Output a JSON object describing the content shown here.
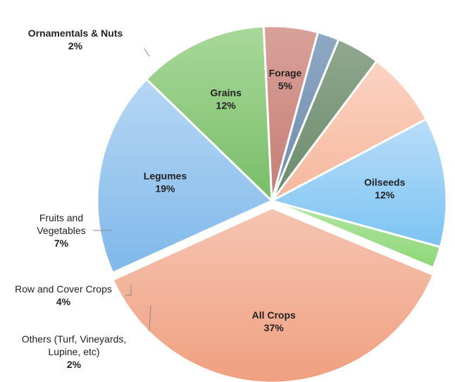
{
  "chart_data": {
    "type": "pie",
    "title": "",
    "unit": "%",
    "slices": [
      {
        "label": [
          "All Crops"
        ],
        "value": 37,
        "value_label": "37%",
        "color_light": "#f5c4b2",
        "color_dark": "#f0a080"
      },
      {
        "label": [
          "Legumes"
        ],
        "value": 19,
        "value_label": "19%",
        "color_light": "#b6d7f4",
        "color_dark": "#7fb8ea"
      },
      {
        "label": [
          "Grains"
        ],
        "value": 12,
        "value_label": "12%",
        "color_light": "#a9d89a",
        "color_dark": "#77bd67"
      },
      {
        "label": [
          "Forage"
        ],
        "value": 5,
        "value_label": "5%",
        "color_light": "#d9a19a",
        "color_dark": "#c47d74"
      },
      {
        "label": [
          "Others (Turf, Vineyards,",
          "Lupine, etc)"
        ],
        "value": 2,
        "value_label": "2%",
        "color_light": "#8fa8c4",
        "color_dark": "#6e8cae"
      },
      {
        "label": [
          "Row and Cover Crops"
        ],
        "value": 4,
        "value_label": "4%",
        "color_light": "#8fa88f",
        "color_dark": "#6b8a6b"
      },
      {
        "label": [
          "Fruits and",
          "Vegetables"
        ],
        "value": 7,
        "value_label": "7%",
        "color_light": "#fbd3c2",
        "color_dark": "#f6b79d"
      },
      {
        "label": [
          "Oilseeds"
        ],
        "value": 12,
        "value_label": "12%",
        "color_light": "#b9ddfa",
        "color_dark": "#7cc3f2"
      },
      {
        "label": [
          "Ornamentals & Nuts"
        ],
        "value": 2,
        "value_label": "2%",
        "color_light": "#b4e6a4",
        "color_dark": "#8dd778"
      }
    ]
  }
}
